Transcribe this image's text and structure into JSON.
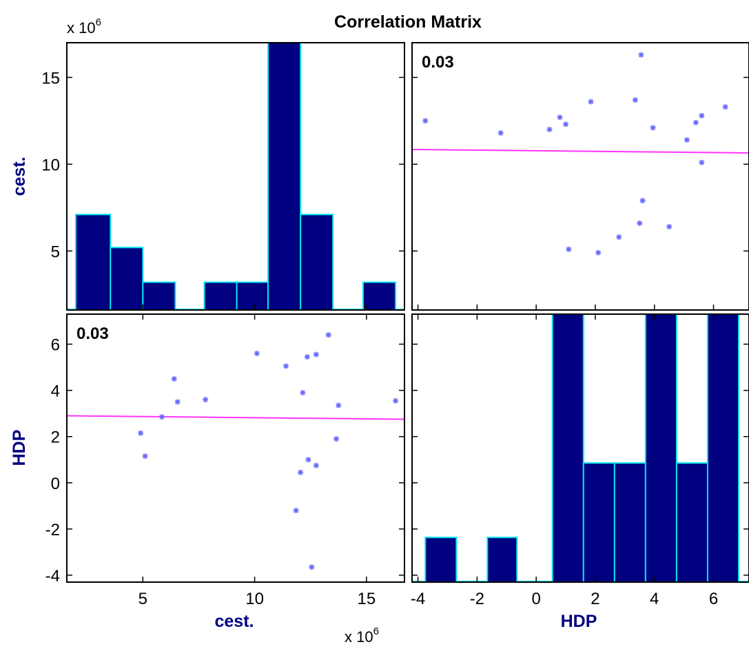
{
  "chart_data": {
    "type": "scatter-matrix",
    "title": "Correlation Matrix",
    "variables": [
      "cest.",
      "HDP"
    ],
    "exponent_label": "x 10",
    "exponent_power": "6",
    "colors": {
      "bar_fill": "#000080",
      "bar_edge": "#00e5ee",
      "points": "#6b6bff",
      "fit_line": "#ff33ff",
      "frame": "#000000"
    },
    "panels": [
      {
        "id": "cest-hist",
        "type": "bar",
        "variable": "cest.",
        "bin_edges": [
          2.0,
          3.6,
          5.2,
          6.8,
          8.4,
          10.0,
          11.6,
          13.2,
          14.8,
          16.4
        ],
        "bin_edges_note": "data-space x positions of histogram bins (x 10^6)",
        "bars": [
          {
            "x0": 2.0,
            "x1": 3.55,
            "y": 7.1
          },
          {
            "x0": 3.55,
            "x1": 5.0,
            "y": 5.2
          },
          {
            "x0": 5.0,
            "x1": 6.45,
            "y": 3.2
          },
          {
            "x0": 7.75,
            "x1": 9.2,
            "y": 3.2
          },
          {
            "x0": 9.2,
            "x1": 10.6,
            "y": 3.2
          },
          {
            "x0": 10.6,
            "x1": 12.05,
            "y": 17
          },
          {
            "x0": 12.05,
            "x1": 13.5,
            "y": 7.1
          },
          {
            "x0": 14.85,
            "x1": 16.3,
            "y": 3.2
          }
        ],
        "ylim": [
          1.6,
          17
        ],
        "xlim": [
          1.6,
          16.7
        ],
        "yticks": [
          5,
          10,
          15
        ],
        "ytick_labels": [
          "5",
          "10",
          "15"
        ]
      },
      {
        "id": "hdp-vs-cest",
        "type": "scatter",
        "correlation": "0.03",
        "x": [
          -3.75,
          -1.2,
          0.45,
          0.8,
          1.0,
          1.85,
          3.35,
          3.55,
          3.95,
          5.1,
          5.4,
          5.6,
          6.4,
          5.6,
          3.6,
          3.5,
          4.5,
          2.8,
          2.1,
          1.1
        ],
        "y": [
          12.5,
          11.8,
          12.0,
          12.7,
          12.3,
          13.6,
          13.7,
          16.3,
          12.1,
          11.4,
          12.4,
          12.8,
          13.3,
          10.1,
          7.9,
          6.6,
          6.4,
          5.8,
          4.9,
          5.1
        ],
        "fit_line": {
          "x": [
            -4.2,
            7.2
          ],
          "y": [
            10.85,
            10.65
          ]
        },
        "xlim": [
          -4.2,
          7.2
        ],
        "ylim": [
          1.6,
          17
        ]
      },
      {
        "id": "cest-vs-hdp",
        "type": "scatter",
        "correlation": "0.03",
        "x": [
          4.9,
          5.1,
          5.85,
          6.4,
          6.55,
          7.8,
          10.1,
          11.4,
          11.85,
          12.05,
          12.15,
          12.35,
          12.4,
          12.55,
          12.75,
          12.75,
          13.3,
          13.65,
          13.75,
          16.3
        ],
        "y": [
          2.15,
          1.15,
          2.85,
          4.5,
          3.5,
          3.6,
          5.6,
          5.05,
          -1.2,
          0.45,
          3.9,
          5.45,
          1.0,
          -3.65,
          0.75,
          5.55,
          6.4,
          1.9,
          3.35,
          3.55
        ],
        "fit_line": {
          "x": [
            1.6,
            16.7
          ],
          "y": [
            2.9,
            2.75
          ]
        },
        "xlim": [
          1.6,
          16.7
        ],
        "ylim": [
          -4.3,
          7.3
        ],
        "yticks": [
          -4,
          -2,
          0,
          2,
          4,
          6
        ],
        "ytick_labels": [
          "-4",
          "-2",
          "0",
          "2",
          "4",
          "6"
        ],
        "xticks": [
          5,
          10,
          15
        ],
        "xtick_labels": [
          "5",
          "10",
          "15"
        ]
      },
      {
        "id": "hdp-hist",
        "type": "bar",
        "variable": "HDP",
        "bars": [
          {
            "x0": -3.75,
            "x1": -2.7,
            "y": 1.5
          },
          {
            "x0": -1.65,
            "x1": -0.65,
            "y": 1.5
          },
          {
            "x0": 0.55,
            "x1": 1.6,
            "y": 9
          },
          {
            "x0": 1.6,
            "x1": 2.65,
            "y": 4
          },
          {
            "x0": 2.65,
            "x1": 3.7,
            "y": 4
          },
          {
            "x0": 3.7,
            "x1": 4.75,
            "y": 9
          },
          {
            "x0": 4.75,
            "x1": 5.8,
            "y": 4
          },
          {
            "x0": 5.8,
            "x1": 6.85,
            "y": 9
          }
        ],
        "xlim": [
          -4.2,
          7.2
        ],
        "ylim": [
          0,
          9
        ],
        "xticks": [
          -4,
          -2,
          0,
          2,
          4,
          6
        ],
        "xtick_labels": [
          "-4",
          "-2",
          "0",
          "2",
          "4",
          "6"
        ]
      }
    ]
  }
}
